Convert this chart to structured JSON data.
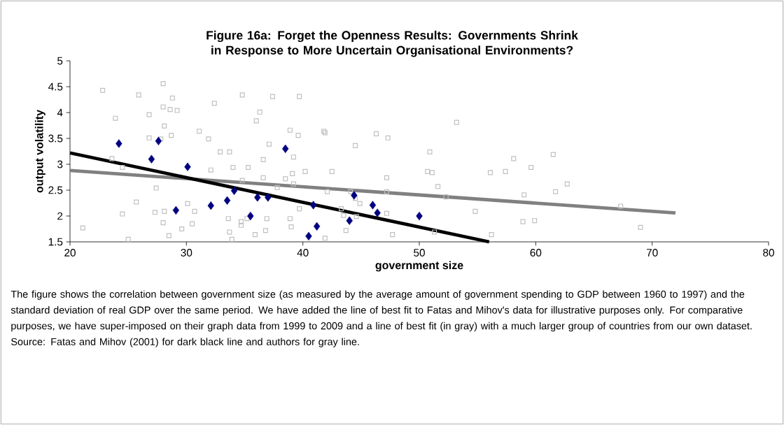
{
  "chart_data": {
    "type": "scatter",
    "title": "Figure 16a: Forget the Openness Results: Governments Shrink in Response to More Uncertain Organisational Environments?",
    "xlabel": "government size",
    "ylabel": "output volatility",
    "xlim": [
      20,
      80
    ],
    "xticks": [
      20,
      30,
      40,
      50,
      60,
      70,
      80
    ],
    "ylim": [
      1.5,
      5
    ],
    "yticks": [
      1.5,
      2,
      2.5,
      3,
      3.5,
      4,
      4.5,
      5
    ],
    "series": [
      {
        "type": "scatter",
        "marker": "square",
        "color": "#c0c0c0",
        "x": [
          28.0,
          22.8,
          25.9,
          28.8,
          32.4,
          34.8,
          28.0,
          28.6,
          29.2,
          26.8,
          23.9,
          28.1,
          31.1,
          28.7,
          26.8,
          27.8,
          31.9,
          32.9,
          33.7,
          23.6,
          24.5,
          34.0,
          35.3,
          32.1,
          34.8,
          27.4,
          25.7,
          30.1,
          24.5,
          27.3,
          28.1,
          30.7,
          21.1,
          28.0,
          29.6,
          30.5,
          28.5,
          33.6,
          33.7,
          34.7,
          34.7,
          35.2,
          25.0,
          33.9,
          37.4,
          39.7,
          36.3,
          36.0,
          38.9,
          39.6,
          41.8,
          41.9,
          46.3,
          47.3,
          37.1,
          44.5,
          39.2,
          36.6,
          40.2,
          42.5,
          36.6,
          39.1,
          38.5,
          39.2,
          47.2,
          47.2,
          37.8,
          42.1,
          44.1,
          44.5,
          44.9,
          39.7,
          43.3,
          43.5,
          44.6,
          47.2,
          36.9,
          38.9,
          39.0,
          36.8,
          35.9,
          43.7,
          47.7,
          41.9,
          53.2,
          50.9,
          58.1,
          61.5,
          50.7,
          51.1,
          56.1,
          57.4,
          59.6,
          51.6,
          52.3,
          62.7,
          61.7,
          59.0,
          67.3,
          54.8,
          58.9,
          59.9,
          56.2,
          51.3,
          69.0
        ],
        "values": [
          4.56,
          4.43,
          4.34,
          4.28,
          4.18,
          4.34,
          4.11,
          4.06,
          4.04,
          3.96,
          3.89,
          3.74,
          3.64,
          3.56,
          3.51,
          3.49,
          3.49,
          3.24,
          3.24,
          3.11,
          2.94,
          2.94,
          2.94,
          2.89,
          2.69,
          2.54,
          2.27,
          2.24,
          2.04,
          2.07,
          2.09,
          2.09,
          1.77,
          1.87,
          1.75,
          1.85,
          1.62,
          1.95,
          1.69,
          1.89,
          1.82,
          1.95,
          1.55,
          1.55,
          4.31,
          4.31,
          4.01,
          3.84,
          3.66,
          3.56,
          3.64,
          3.61,
          3.59,
          3.51,
          3.39,
          3.36,
          3.14,
          3.09,
          2.86,
          2.86,
          2.74,
          2.82,
          2.72,
          2.62,
          2.74,
          2.47,
          2.55,
          2.47,
          2.47,
          2.34,
          2.24,
          2.14,
          2.14,
          2.01,
          1.99,
          2.05,
          1.95,
          1.95,
          1.79,
          1.72,
          1.64,
          1.72,
          1.64,
          1.57,
          3.81,
          3.24,
          3.11,
          3.19,
          2.86,
          2.84,
          2.84,
          2.86,
          2.94,
          2.57,
          2.37,
          2.62,
          2.47,
          2.41,
          2.19,
          2.09,
          1.89,
          1.91,
          1.64,
          1.69,
          1.78
        ]
      },
      {
        "type": "line",
        "marker": "none",
        "color": "#808080",
        "x": [
          20,
          72
        ],
        "values": [
          2.88,
          2.06
        ]
      },
      {
        "type": "scatter",
        "marker": "diamond",
        "color": "#000080",
        "x": [
          24.2,
          27.6,
          27.0,
          30.1,
          34.1,
          33.5,
          32.1,
          29.1,
          35.5,
          38.5,
          36.1,
          37.0,
          40.9,
          41.2,
          40.5,
          44.4,
          44.0,
          46.0,
          46.4,
          50.0
        ],
        "values": [
          3.4,
          3.45,
          3.1,
          2.95,
          2.49,
          2.3,
          2.2,
          2.11,
          2.0,
          3.3,
          2.36,
          2.36,
          2.21,
          1.8,
          1.61,
          2.4,
          1.91,
          2.21,
          2.06,
          2.0
        ]
      },
      {
        "type": "line",
        "marker": "none",
        "color": "#000000",
        "x": [
          20,
          56
        ],
        "values": [
          3.22,
          1.5
        ]
      }
    ],
    "annotations": [
      "The figure shows the correlation between government size (as measured by the average amount of government spending to GDP between 1960 to 1997) and the standard deviation of real GDP over the same period. We have added the line of best fit to Fatas and Mihov's data for illustrative purposes only. For comparative purposes, we have super-imposed on their graph data from 1999 to 2009 and a line of best fit (in gray) with a much larger group of countries from our own dataset.",
      "Source: Fatas and Mihov (2001) for dark black line and authors for gray line."
    ]
  }
}
